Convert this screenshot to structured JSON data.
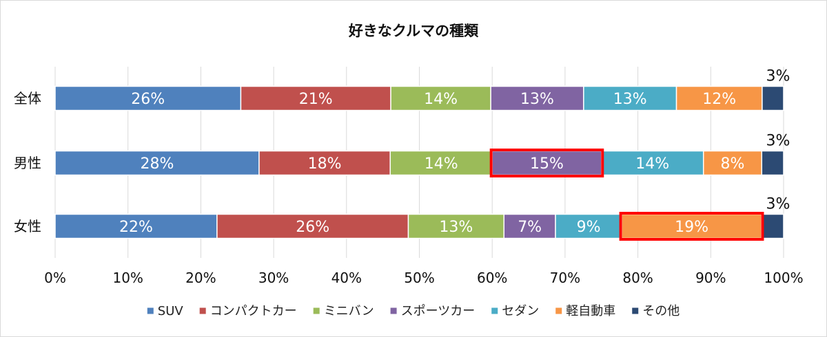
{
  "chart_data": {
    "type": "bar",
    "orientation": "horizontal",
    "stacked": "percent",
    "title": "好きなクルマの種類",
    "categories": [
      "全体",
      "男性",
      "女性"
    ],
    "series": [
      {
        "name": "SUV",
        "color": "#4f81bd",
        "values": [
          26,
          28,
          22
        ]
      },
      {
        "name": "コンパクトカー",
        "color": "#c0504d",
        "values": [
          21,
          18,
          26
        ]
      },
      {
        "name": "ミニバン",
        "color": "#9bbb59",
        "values": [
          14,
          14,
          13
        ]
      },
      {
        "name": "スポーツカー",
        "color": "#8064a2",
        "values": [
          13,
          15,
          7
        ]
      },
      {
        "name": "セダン",
        "color": "#4bacc6",
        "values": [
          13,
          14,
          9
        ]
      },
      {
        "name": "軽自動車",
        "color": "#f79646",
        "values": [
          12,
          8,
          19
        ]
      },
      {
        "name": "その他",
        "color": "#2c4a73",
        "values": [
          3,
          3,
          3
        ]
      }
    ],
    "x_ticks": [
      "0%",
      "10%",
      "20%",
      "30%",
      "40%",
      "50%",
      "60%",
      "70%",
      "80%",
      "90%",
      "100%"
    ],
    "xlim": [
      0,
      100
    ],
    "grid": "vertical",
    "legend_position": "bottom",
    "highlight_color": "#ff0000",
    "highlights": [
      {
        "category": "男性",
        "series": "スポーツカー"
      },
      {
        "category": "女性",
        "series": "軽自動車"
      }
    ]
  }
}
